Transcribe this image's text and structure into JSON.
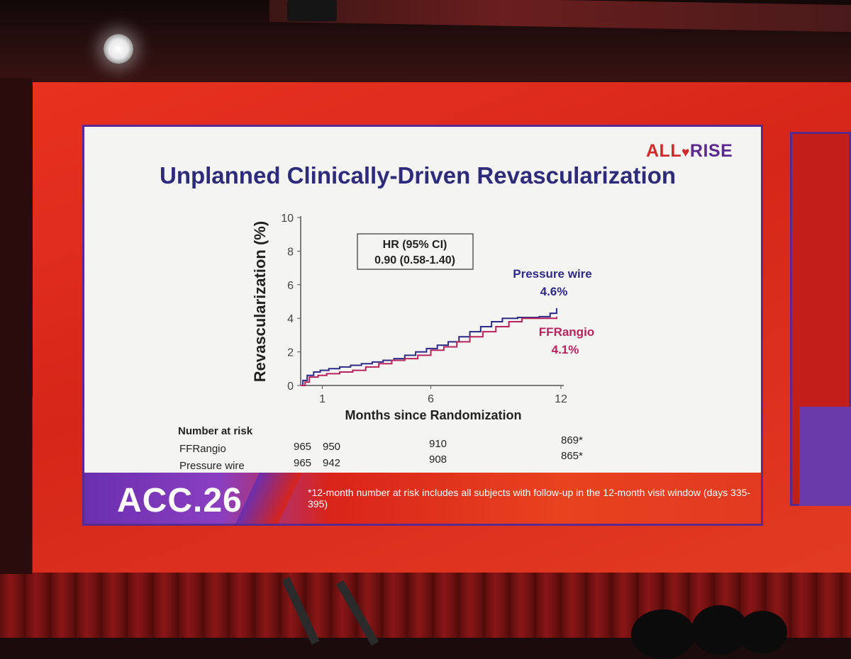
{
  "logo": {
    "part1": "ALL",
    "heart": "♥",
    "part2": "RISE"
  },
  "slide_title": "Unplanned Clinically-Driven Revascularization",
  "colors": {
    "pressure_wire": "#2e2a86",
    "ffrangio": "#b7235a",
    "title": "#2e2b7a",
    "brand_purple": "#5b2a91",
    "brand_red": "#d22a2a"
  },
  "chart_data": {
    "type": "line",
    "title": "Unplanned Clinically-Driven Revascularization",
    "xlabel": "Months since Randomization",
    "ylabel": "Revascularization (%)",
    "xlim": [
      0,
      12
    ],
    "ylim": [
      0,
      10
    ],
    "x_ticks": [
      1,
      6,
      12
    ],
    "x_tick_labels": [
      "1",
      "6",
      "12"
    ],
    "y_ticks": [
      0,
      2,
      4,
      6,
      8,
      10
    ],
    "y_tick_labels": [
      "0",
      "2",
      "4",
      "6",
      "8",
      "10"
    ],
    "grid": false,
    "hr_box": {
      "line1": "HR (95% CI)",
      "line2": "0.90 (0.58-1.40)"
    },
    "series": [
      {
        "name": "Pressure wire",
        "final_label": "4.6%",
        "points": [
          [
            0,
            0
          ],
          [
            0.1,
            0.3
          ],
          [
            0.3,
            0.6
          ],
          [
            0.6,
            0.8
          ],
          [
            0.9,
            0.9
          ],
          [
            1.3,
            1.0
          ],
          [
            1.8,
            1.1
          ],
          [
            2.3,
            1.2
          ],
          [
            2.8,
            1.3
          ],
          [
            3.3,
            1.4
          ],
          [
            3.8,
            1.5
          ],
          [
            4.3,
            1.6
          ],
          [
            4.8,
            1.8
          ],
          [
            5.3,
            2.0
          ],
          [
            5.8,
            2.2
          ],
          [
            6.3,
            2.4
          ],
          [
            6.8,
            2.6
          ],
          [
            7.3,
            2.9
          ],
          [
            7.8,
            3.2
          ],
          [
            8.3,
            3.5
          ],
          [
            8.8,
            3.8
          ],
          [
            9.3,
            4.0
          ],
          [
            10.0,
            4.05
          ],
          [
            11.0,
            4.1
          ],
          [
            11.5,
            4.3
          ],
          [
            11.8,
            4.6
          ]
        ]
      },
      {
        "name": "FFRangio",
        "final_label": "4.1%",
        "points": [
          [
            0,
            0
          ],
          [
            0.2,
            0.2
          ],
          [
            0.4,
            0.5
          ],
          [
            0.8,
            0.6
          ],
          [
            1.2,
            0.7
          ],
          [
            1.8,
            0.8
          ],
          [
            2.4,
            0.9
          ],
          [
            3.0,
            1.1
          ],
          [
            3.6,
            1.3
          ],
          [
            4.2,
            1.5
          ],
          [
            4.8,
            1.6
          ],
          [
            5.4,
            1.8
          ],
          [
            6.0,
            2.1
          ],
          [
            6.6,
            2.3
          ],
          [
            7.2,
            2.6
          ],
          [
            7.8,
            2.9
          ],
          [
            8.4,
            3.2
          ],
          [
            9.0,
            3.5
          ],
          [
            9.6,
            3.8
          ],
          [
            10.2,
            4.0
          ],
          [
            11.0,
            4.0
          ],
          [
            11.8,
            4.1
          ]
        ]
      }
    ]
  },
  "risk_table": {
    "header": "Number at risk",
    "rows": [
      {
        "label": "FFRangio",
        "v1": "965",
        "v2": "950",
        "v3": "910",
        "v4": "869*"
      },
      {
        "label": "Pressure wire",
        "v1": "965",
        "v2": "942",
        "v3": "908",
        "v4": "865*"
      }
    ]
  },
  "footer": {
    "brand": "ACC.26",
    "footnote": "*12-month number at risk includes all subjects with follow-up in the 12-month visit window (days 335-395)"
  }
}
